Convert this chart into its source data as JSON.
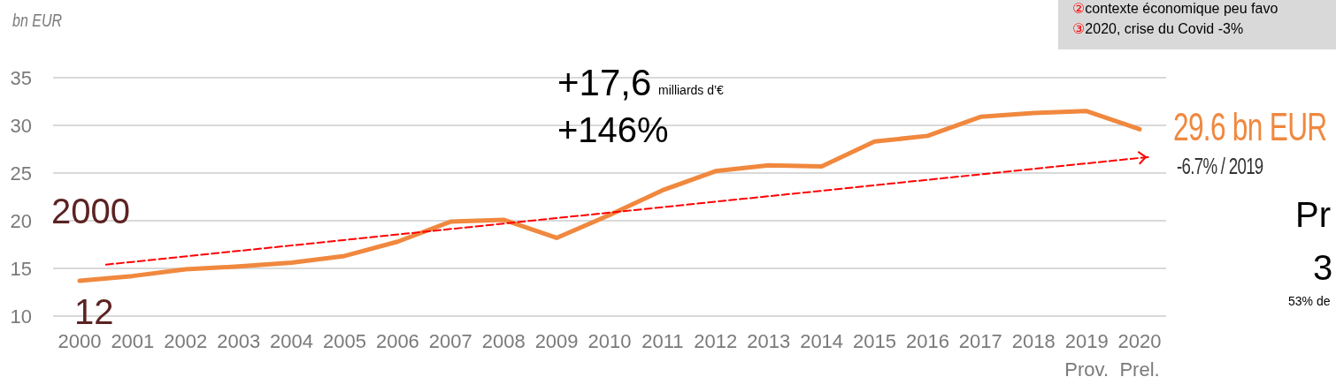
{
  "chart_data": {
    "type": "line",
    "ylabel": "bn EUR",
    "marker": "none",
    "grid": "y",
    "xlim": [
      1999.5,
      2020.5
    ],
    "xticks": [
      2000,
      2001,
      2002,
      2003,
      2004,
      2005,
      2006,
      2007,
      2008,
      2009,
      2010,
      2011,
      2012,
      2013,
      2014,
      2015,
      2016,
      2017,
      2018,
      {
        "value": 2019,
        "label": "2019\nProv."
      },
      {
        "value": 2020,
        "label": "2020\nPrel."
      }
    ],
    "ylim": [
      10,
      35
    ],
    "yticks": [
      10,
      15,
      20,
      25,
      30,
      35
    ],
    "series": [
      {
        "type": "line",
        "color": "#f0883e",
        "line_style": "solid",
        "x": [
          2000,
          2001,
          2002,
          2003,
          2004,
          2005,
          2006,
          2007,
          2008,
          2009,
          2010,
          2011,
          2012,
          2013,
          2014,
          2015,
          2016,
          2017,
          2018,
          2019,
          2020
        ],
        "values": [
          13.7,
          14.2,
          14.9,
          15.2,
          15.6,
          16.3,
          17.8,
          19.9,
          20.1,
          18.2,
          20.6,
          23.2,
          25.2,
          25.8,
          25.7,
          28.3,
          28.9,
          30.9,
          31.3,
          31.5,
          29.6
        ]
      },
      {
        "type": "line",
        "color": "#ff0000",
        "line_style": "dashed",
        "x": [
          2000.5,
          2020.2
        ],
        "values": [
          15.4,
          26.7
        ]
      }
    ],
    "annotations": [
      "+17,6",
      "milliards d’€",
      "+146%",
      "2000",
      "12",
      {
        "text": "29.6 bn EUR",
        "x": 2020,
        "y": 29.6
      },
      "-6.7% / 2019",
      "②contexte économique peu favo",
      "③2020, crise du Covid -3%",
      "Pr",
      "3",
      "53% de"
    ]
  }
}
